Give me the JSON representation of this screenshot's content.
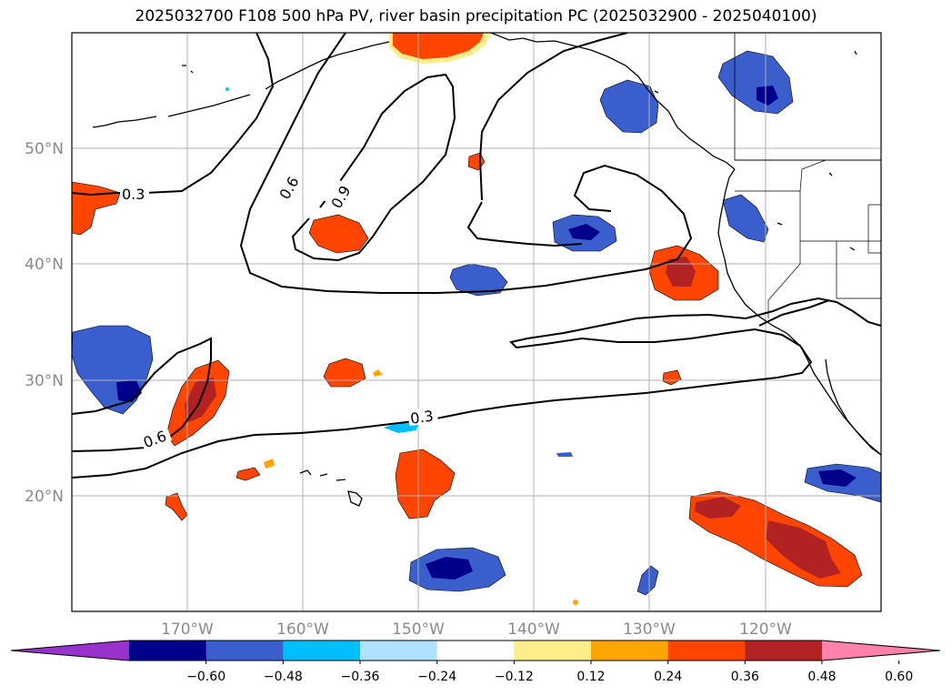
{
  "title": "2025032700 F108 500 hPa PV, river basin precipitation PC (2025032900 - 2025040100)",
  "lat_labels": [
    "50°N",
    "40°N",
    "30°N",
    "20°N"
  ],
  "lon_labels": [
    "170°W",
    "160°W",
    "150°W",
    "140°W",
    "130°W",
    "120°W"
  ],
  "contour_labels": [
    "0.3",
    "0.6",
    "0.9",
    "0.6",
    "0.3"
  ],
  "colorbar": {
    "tick_labels": [
      "−0.60",
      "−0.48",
      "−0.36",
      "−0.24",
      "−0.12",
      "0.12",
      "0.24",
      "0.36",
      "0.48",
      "0.60"
    ],
    "colors": [
      "#9932cc",
      "#00008b",
      "#3a5fcd",
      "#00bfff",
      "#b0e2ff",
      "#ffffff",
      "#ffec8b",
      "#ffa500",
      "#ff4500",
      "#b22222",
      "#ff82ab"
    ]
  },
  "colors": {
    "contour": "#000000",
    "grid": "#b0b0b0",
    "coast": "#000000"
  }
}
